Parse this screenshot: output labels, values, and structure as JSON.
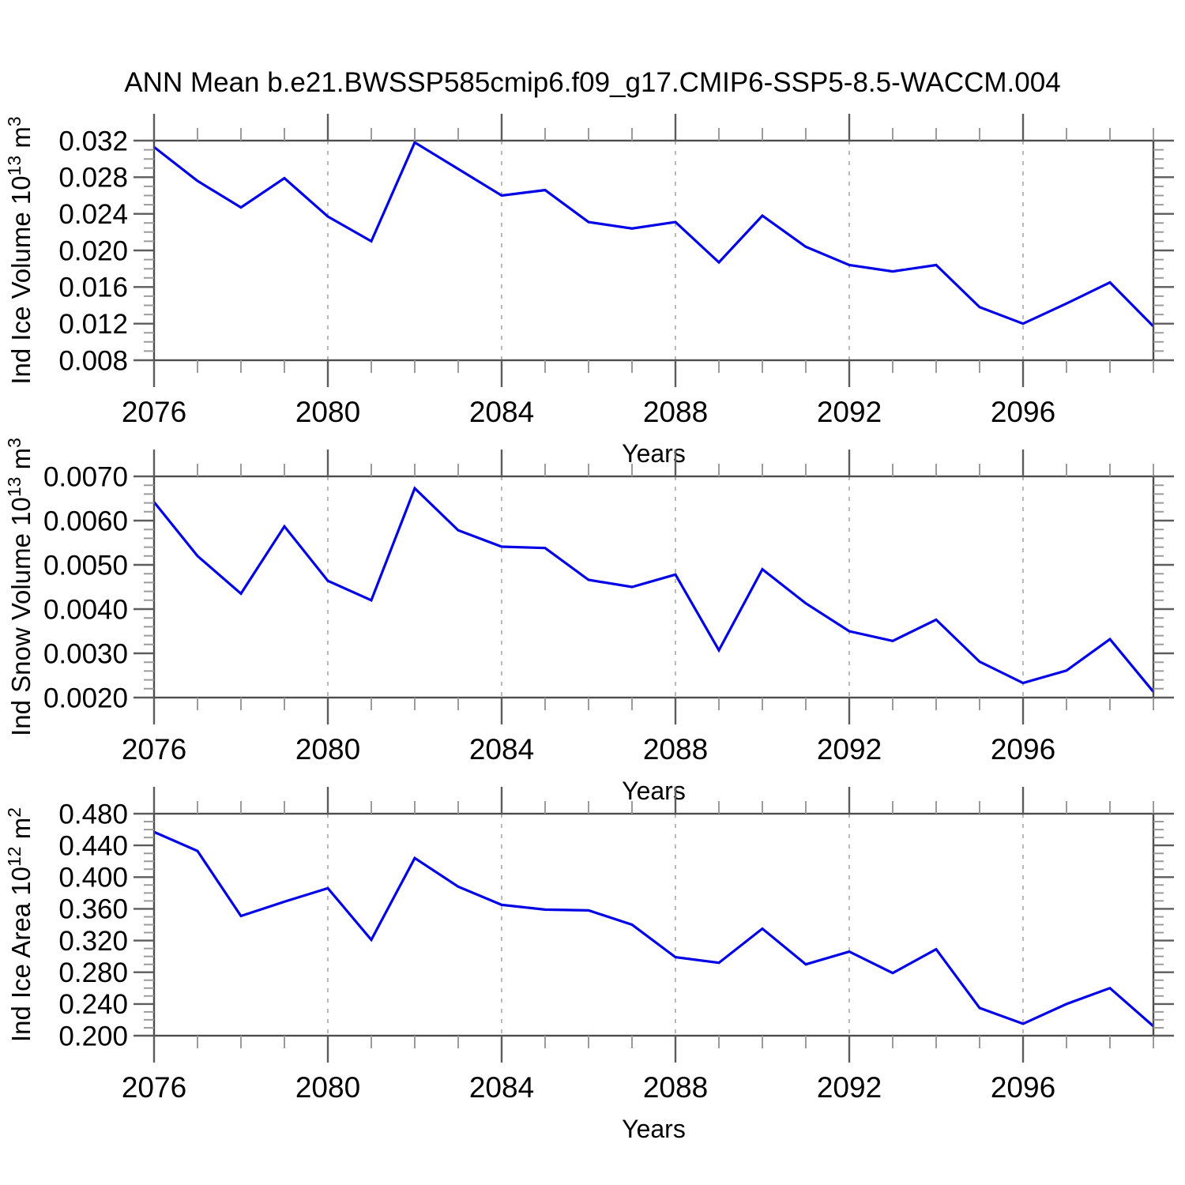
{
  "title": "ANN Mean b.e21.BWSSP585cmip6.f09_g17.CMIP6-SSP5-8.5-WACCM.004",
  "x_axis": {
    "label": "Years",
    "min": 2076,
    "max": 2099,
    "major_ticks": [
      2076,
      2080,
      2084,
      2088,
      2092,
      2096
    ],
    "minor_step": 1,
    "grid_years": [
      2080,
      2084,
      2088,
      2092,
      2096
    ]
  },
  "style": {
    "line_color": "#0000e6",
    "box_color": "#4d4d4d",
    "major_tick_color": "#5c5c5c",
    "minor_tick_color": "#9b9b9b",
    "grid_color": "#a8a8a8",
    "text_color": "#000000",
    "background": "#ffffff"
  },
  "chart_data": [
    {
      "type": "line",
      "name": "ind-ice-volume",
      "ylabel_text": "Ind Ice Volume 10^13 m^3",
      "ylabel_parts": [
        {
          "t": "Ind Ice Volume 10"
        },
        {
          "t": "13",
          "sup": true
        },
        {
          "t": " m"
        },
        {
          "t": "3",
          "sup": true
        }
      ],
      "xlabel": "Years",
      "ymin": 0.008,
      "ymax": 0.032,
      "ymajor": 0.004,
      "yminor": 0.001,
      "ytick_labels": [
        "0.008",
        "0.012",
        "0.016",
        "0.020",
        "0.024",
        "0.028",
        "0.032"
      ],
      "x": [
        2076,
        2077,
        2078,
        2079,
        2080,
        2081,
        2082,
        2083,
        2084,
        2085,
        2086,
        2087,
        2088,
        2089,
        2090,
        2091,
        2092,
        2093,
        2094,
        2095,
        2096,
        2097,
        2098,
        2099
      ],
      "values": [
        0.0313,
        0.0276,
        0.0247,
        0.0279,
        0.0237,
        0.021,
        0.0318,
        0.0289,
        0.026,
        0.0266,
        0.0231,
        0.0224,
        0.0231,
        0.0187,
        0.0238,
        0.0204,
        0.0184,
        0.0177,
        0.0184,
        0.0138,
        0.012,
        0.0142,
        0.0165,
        0.0117
      ]
    },
    {
      "type": "line",
      "name": "ind-snow-volume",
      "ylabel_text": "Ind Snow Volume 10^13 m^3",
      "ylabel_parts": [
        {
          "t": "Ind Snow Volume 10"
        },
        {
          "t": "13",
          "sup": true
        },
        {
          "t": " m"
        },
        {
          "t": "3",
          "sup": true
        }
      ],
      "xlabel": "Years",
      "ymin": 0.002,
      "ymax": 0.007,
      "ymajor": 0.001,
      "yminor": 0.0002,
      "ytick_labels": [
        "0.0020",
        "0.0030",
        "0.0040",
        "0.0050",
        "0.0060",
        "0.0070"
      ],
      "x": [
        2076,
        2077,
        2078,
        2079,
        2080,
        2081,
        2082,
        2083,
        2084,
        2085,
        2086,
        2087,
        2088,
        2089,
        2090,
        2091,
        2092,
        2093,
        2094,
        2095,
        2096,
        2097,
        2098,
        2099
      ],
      "values": [
        0.00642,
        0.0052,
        0.00435,
        0.00587,
        0.00464,
        0.0042,
        0.00673,
        0.00578,
        0.00541,
        0.00538,
        0.00466,
        0.0045,
        0.00478,
        0.00307,
        0.0049,
        0.00413,
        0.0035,
        0.00328,
        0.00376,
        0.00281,
        0.00233,
        0.00261,
        0.00332,
        0.00213
      ]
    },
    {
      "type": "line",
      "name": "ind-ice-area",
      "ylabel_text": "Ind Ice Area 10^12 m^2",
      "ylabel_parts": [
        {
          "t": "Ind Ice Area 10"
        },
        {
          "t": "12",
          "sup": true
        },
        {
          "t": " m"
        },
        {
          "t": "2",
          "sup": true
        }
      ],
      "xlabel": "Years",
      "ymin": 0.2,
      "ymax": 0.48,
      "ymajor": 0.04,
      "yminor": 0.01,
      "ytick_labels": [
        "0.200",
        "0.240",
        "0.280",
        "0.320",
        "0.360",
        "0.400",
        "0.440",
        "0.480"
      ],
      "x": [
        2076,
        2077,
        2078,
        2079,
        2080,
        2081,
        2082,
        2083,
        2084,
        2085,
        2086,
        2087,
        2088,
        2089,
        2090,
        2091,
        2092,
        2093,
        2094,
        2095,
        2096,
        2097,
        2098,
        2099
      ],
      "values": [
        0.457,
        0.433,
        0.351,
        0.369,
        0.386,
        0.321,
        0.424,
        0.388,
        0.365,
        0.359,
        0.358,
        0.34,
        0.299,
        0.292,
        0.335,
        0.29,
        0.306,
        0.279,
        0.309,
        0.235,
        0.215,
        0.24,
        0.26,
        0.212
      ]
    }
  ]
}
